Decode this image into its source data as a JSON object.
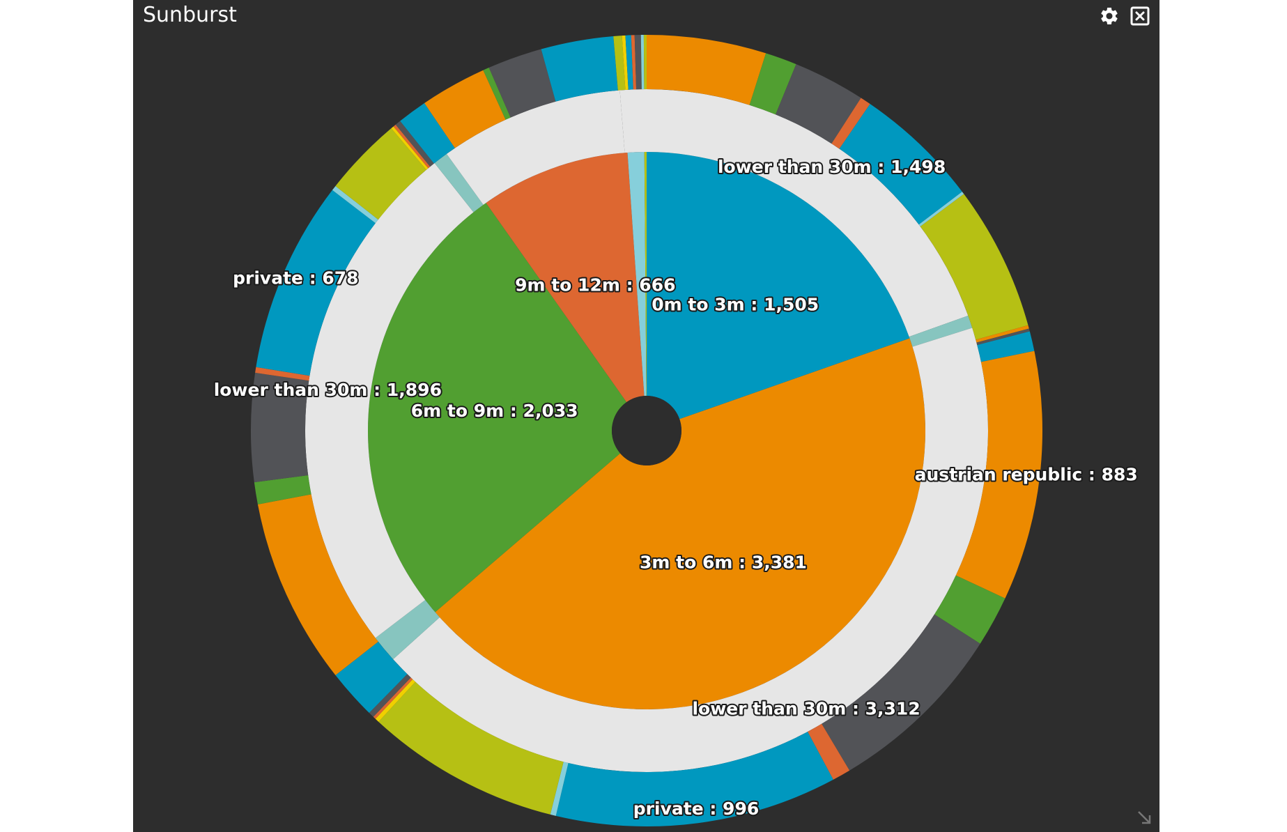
{
  "window": {
    "title": "Sunburst"
  },
  "icons": {
    "settings": "gear-icon",
    "close": "close-box-icon",
    "resize": "resize-arrow-icon"
  },
  "colors": {
    "background": "#2d2d2d",
    "blue": "#0098bf",
    "orange": "#ec8a00",
    "green": "#519f31",
    "red": "#dd6731",
    "lightblue": "#86cfdb",
    "teal": "#87c5bf",
    "lightgray": "#e6e6e6",
    "darkgray": "#525357",
    "olive": "#b6c014",
    "yellow": "#f0d000"
  },
  "chart_data": {
    "type": "sunburst",
    "title": "",
    "rings": [
      {
        "level": 1,
        "segments": [
          {
            "label": "0m to 3m",
            "value": 1505,
            "color": "#0098bf",
            "show_label": true
          },
          {
            "label": "3m to 6m",
            "value": 3381,
            "color": "#ec8a00",
            "show_label": true
          },
          {
            "label": "6m to 9m",
            "value": 2033,
            "color": "#519f31",
            "show_label": true
          },
          {
            "label": "9m to 12m",
            "value": 666,
            "color": "#dd6731",
            "show_label": true
          },
          {
            "label": "",
            "value": 74,
            "color": "#86cfdb",
            "show_label": false
          },
          {
            "label": "",
            "value": 10,
            "color": "#b6c014",
            "show_label": false
          }
        ]
      },
      {
        "level": 2,
        "segments": [
          {
            "label": "lower than 30m",
            "value": 1498,
            "color": "#e6e6e6",
            "show_label": true
          },
          {
            "label": "",
            "value": 46,
            "color": "#87c5bf",
            "show_label": false
          },
          {
            "label": "lower than 30m",
            "value": 3312,
            "color": "#e6e6e6",
            "show_label": true
          },
          {
            "label": "",
            "value": 99,
            "color": "#87c5bf",
            "show_label": false
          },
          {
            "label": "lower than 30m",
            "value": 1896,
            "color": "#e6e6e6",
            "show_label": true
          },
          {
            "label": "",
            "value": 54,
            "color": "#87c5bf",
            "show_label": false
          },
          {
            "label": "",
            "value": 668,
            "color": "#e6e6e6",
            "show_label": false
          },
          {
            "label": "",
            "value": 96,
            "color": "#e6e6e6",
            "show_label": false
          }
        ]
      },
      {
        "level": 3,
        "segments": [
          {
            "label": "",
            "value": 422,
            "color": "#ec8a00",
            "show_label": false
          },
          {
            "label": "",
            "value": 112,
            "color": "#519f31",
            "show_label": false
          },
          {
            "label": "",
            "value": 255,
            "color": "#525357",
            "show_label": false
          },
          {
            "label": "",
            "value": 38,
            "color": "#dd6731",
            "show_label": false
          },
          {
            "label": "",
            "value": 445,
            "color": "#0098bf",
            "show_label": false
          },
          {
            "label": "",
            "value": 10,
            "color": "#86cfdb",
            "show_label": false
          },
          {
            "label": "",
            "value": 512,
            "color": "#b6c014",
            "show_label": false
          },
          {
            "label": "",
            "value": 12,
            "color": "#ec8a00",
            "show_label": false
          },
          {
            "label": "",
            "value": 10,
            "color": "#525357",
            "show_label": false
          },
          {
            "label": "",
            "value": 70,
            "color": "#0098bf",
            "show_label": false
          },
          {
            "label": "austrian republic",
            "value": 883,
            "color": "#ec8a00",
            "show_label": true
          },
          {
            "label": "",
            "value": 180,
            "color": "#519f31",
            "show_label": false
          },
          {
            "label": "",
            "value": 640,
            "color": "#525357",
            "show_label": false
          },
          {
            "label": "",
            "value": 65,
            "color": "#dd6731",
            "show_label": false
          },
          {
            "label": "private",
            "value": 996,
            "color": "#0098bf",
            "show_label": true
          },
          {
            "label": "",
            "value": 20,
            "color": "#86cfdb",
            "show_label": false
          },
          {
            "label": "",
            "value": 687,
            "color": "#b6c014",
            "show_label": false
          },
          {
            "label": "",
            "value": 15,
            "color": "#f0d000",
            "show_label": false
          },
          {
            "label": "",
            "value": 10,
            "color": "#dd6731",
            "show_label": false
          },
          {
            "label": "",
            "value": 20,
            "color": "#525357",
            "show_label": false
          },
          {
            "label": "",
            "value": 176,
            "color": "#0098bf",
            "show_label": false
          },
          {
            "label": "",
            "value": 660,
            "color": "#ec8a00",
            "show_label": false
          },
          {
            "label": "",
            "value": 78,
            "color": "#519f31",
            "show_label": false
          },
          {
            "label": "",
            "value": 383,
            "color": "#525357",
            "show_label": false
          },
          {
            "label": "",
            "value": 20,
            "color": "#dd6731",
            "show_label": false
          },
          {
            "label": "private",
            "value": 678,
            "color": "#0098bf",
            "show_label": true
          },
          {
            "label": "",
            "value": 18,
            "color": "#86cfdb",
            "show_label": false
          },
          {
            "label": "",
            "value": 280,
            "color": "#b6c014",
            "show_label": false
          },
          {
            "label": "",
            "value": 10,
            "color": "#f0d000",
            "show_label": false
          },
          {
            "label": "",
            "value": 10,
            "color": "#dd6731",
            "show_label": false
          },
          {
            "label": "",
            "value": 20,
            "color": "#525357",
            "show_label": false
          },
          {
            "label": "",
            "value": 105,
            "color": "#0098bf",
            "show_label": false
          },
          {
            "label": "",
            "value": 235,
            "color": "#ec8a00",
            "show_label": false
          },
          {
            "label": "",
            "value": 22,
            "color": "#519f31",
            "show_label": false
          },
          {
            "label": "",
            "value": 193,
            "color": "#525357",
            "show_label": false
          },
          {
            "label": "",
            "value": 256,
            "color": "#0098bf",
            "show_label": false
          },
          {
            "label": "",
            "value": 30,
            "color": "#b6c014",
            "show_label": false
          },
          {
            "label": "",
            "value": 12,
            "color": "#f0d000",
            "show_label": false
          },
          {
            "label": "",
            "value": 20,
            "color": "#0098bf",
            "show_label": false
          },
          {
            "label": "",
            "value": 12,
            "color": "#dd6731",
            "show_label": false
          },
          {
            "label": "",
            "value": 22,
            "color": "#525357",
            "show_label": false
          },
          {
            "label": "",
            "value": 10,
            "color": "#86cfdb",
            "show_label": false
          },
          {
            "label": "",
            "value": 10,
            "color": "#b6c014",
            "show_label": false
          }
        ]
      }
    ]
  }
}
